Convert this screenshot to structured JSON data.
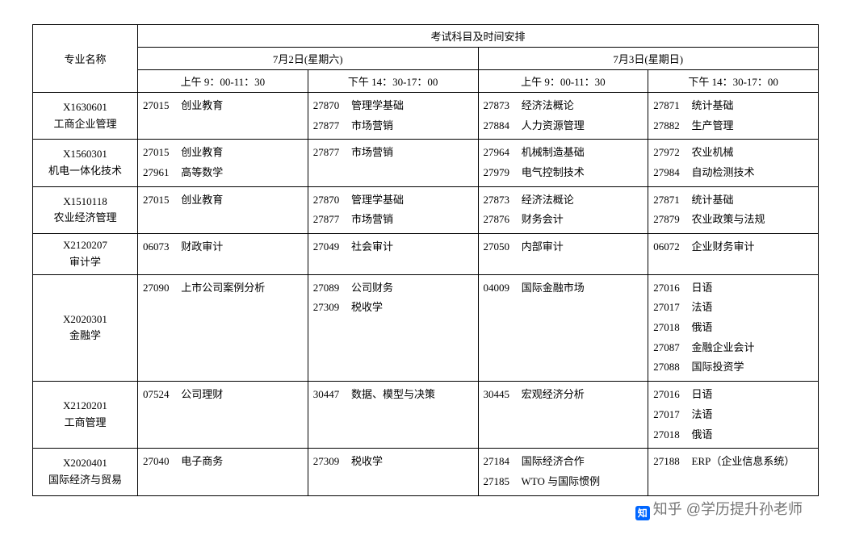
{
  "header": {
    "major_col": "专业名称",
    "schedule_title": "考试科目及时间安排",
    "day1": "7月2日(星期六)",
    "day2": "7月3日(星期日)",
    "slot_am": "上午 9：00-11：30",
    "slot_pm": "下午 14：30-17：00"
  },
  "watermark": {
    "logo": "知",
    "text": "知乎 @学历提升孙老师"
  },
  "rows": [
    {
      "code": "X1630601",
      "name": "工商企业管理",
      "d1am": [
        {
          "c": "27015",
          "n": "创业教育"
        }
      ],
      "d1pm": [
        {
          "c": "27870",
          "n": "管理学基础"
        },
        {
          "c": "27877",
          "n": "市场营销"
        }
      ],
      "d2am": [
        {
          "c": "27873",
          "n": "经济法概论"
        },
        {
          "c": "27884",
          "n": "人力资源管理"
        }
      ],
      "d2pm": [
        {
          "c": "27871",
          "n": "统计基础"
        },
        {
          "c": "27882",
          "n": "生产管理"
        }
      ]
    },
    {
      "code": "X1560301",
      "name": "机电一体化技术",
      "d1am": [
        {
          "c": "27015",
          "n": "创业教育"
        },
        {
          "c": "27961",
          "n": "高等数学"
        }
      ],
      "d1pm": [
        {
          "c": "27877",
          "n": "市场营销"
        }
      ],
      "d2am": [
        {
          "c": "27964",
          "n": "机械制造基础"
        },
        {
          "c": "27979",
          "n": "电气控制技术"
        }
      ],
      "d2pm": [
        {
          "c": "27972",
          "n": "农业机械"
        },
        {
          "c": "27984",
          "n": "自动检测技术"
        }
      ]
    },
    {
      "code": "X1510118",
      "name": "农业经济管理",
      "d1am": [
        {
          "c": "27015",
          "n": "创业教育"
        }
      ],
      "d1pm": [
        {
          "c": "27870",
          "n": "管理学基础"
        },
        {
          "c": "27877",
          "n": "市场营销"
        }
      ],
      "d2am": [
        {
          "c": "27873",
          "n": "经济法概论"
        },
        {
          "c": "27876",
          "n": "财务会计"
        }
      ],
      "d2pm": [
        {
          "c": "27871",
          "n": "统计基础"
        },
        {
          "c": "27879",
          "n": "农业政策与法规"
        }
      ]
    },
    {
      "code": "X2120207",
      "name": "审计学",
      "d1am": [
        {
          "c": "06073",
          "n": "财政审计"
        }
      ],
      "d1pm": [
        {
          "c": "27049",
          "n": "社会审计"
        }
      ],
      "d2am": [
        {
          "c": "27050",
          "n": "内部审计"
        }
      ],
      "d2pm": [
        {
          "c": "06072",
          "n": "企业财务审计"
        }
      ]
    },
    {
      "code": "X2020301",
      "name": "金融学",
      "d1am": [
        {
          "c": "27090",
          "n": "上市公司案例分析"
        }
      ],
      "d1pm": [
        {
          "c": "27089",
          "n": "公司财务"
        },
        {
          "c": "27309",
          "n": "税收学"
        }
      ],
      "d2am": [
        {
          "c": "04009",
          "n": "国际金融市场"
        }
      ],
      "d2pm": [
        {
          "c": "27016",
          "n": "日语"
        },
        {
          "c": "27017",
          "n": "法语"
        },
        {
          "c": "27018",
          "n": "俄语"
        },
        {
          "c": "27087",
          "n": "金融企业会计"
        },
        {
          "c": "27088",
          "n": "国际投资学"
        }
      ]
    },
    {
      "code": "X2120201",
      "name": "工商管理",
      "d1am": [
        {
          "c": "07524",
          "n": "公司理财"
        }
      ],
      "d1pm": [
        {
          "c": "30447",
          "n": "数据、模型与决策"
        }
      ],
      "d2am": [
        {
          "c": "30445",
          "n": "宏观经济分析"
        }
      ],
      "d2pm": [
        {
          "c": "27016",
          "n": "日语"
        },
        {
          "c": "27017",
          "n": "法语"
        },
        {
          "c": "27018",
          "n": "俄语"
        }
      ]
    },
    {
      "code": "X2020401",
      "name": "国际经济与贸易",
      "d1am": [
        {
          "c": "27040",
          "n": "电子商务"
        }
      ],
      "d1pm": [
        {
          "c": "27309",
          "n": "税收学"
        }
      ],
      "d2am": [
        {
          "c": "27184",
          "n": "国际经济合作"
        },
        {
          "c": "27185",
          "n": "WTO 与国际惯例"
        }
      ],
      "d2pm": [
        {
          "c": "27188",
          "n": "ERP（企业信息系统）"
        }
      ]
    }
  ]
}
